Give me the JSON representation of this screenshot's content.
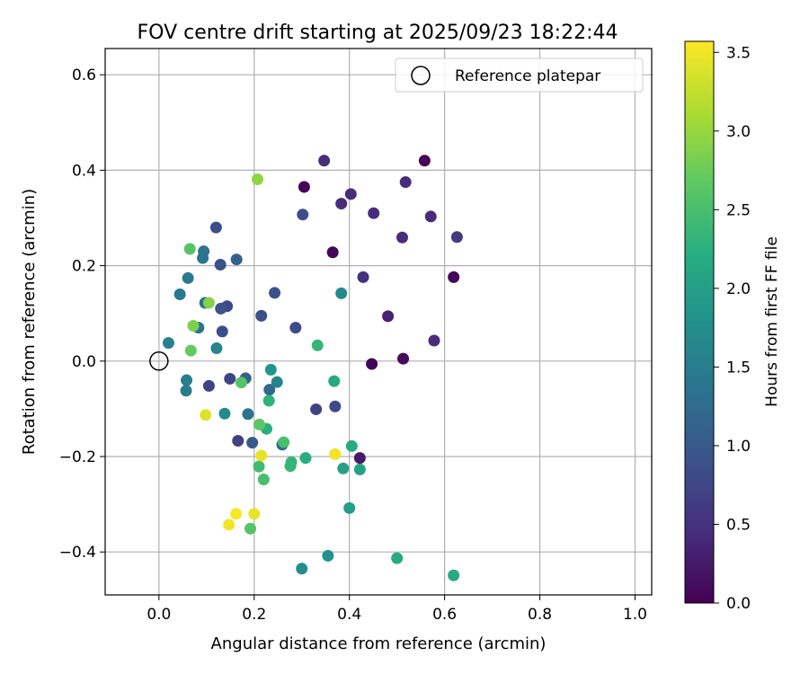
{
  "chart_data": {
    "type": "scatter",
    "title": "FOV centre drift starting at 2025/09/23 18:22:44",
    "xlabel": "Angular distance from reference (arcmin)",
    "ylabel": "Rotation from reference (arcmin)",
    "xlim": [
      -0.113,
      1.035
    ],
    "ylim": [
      -0.49,
      0.655
    ],
    "xticks": [
      0.0,
      0.2,
      0.4,
      0.6,
      0.8,
      1.0
    ],
    "xtick_labels": [
      "0.0",
      "0.2",
      "0.4",
      "0.6",
      "0.8",
      "1.0"
    ],
    "yticks": [
      -0.4,
      -0.2,
      0.0,
      0.2,
      0.4,
      0.6
    ],
    "ytick_labels": [
      "−0.4",
      "−0.2",
      "0.0",
      "0.2",
      "0.4",
      "0.6"
    ],
    "grid": true,
    "legend": {
      "position": "top-right",
      "entries": [
        "Reference platepar"
      ]
    },
    "reference_point": {
      "x": 0.0,
      "y": 0.0
    },
    "colorbar": {
      "label": "Hours from first FF file",
      "colormap": "viridis",
      "range": [
        0.0,
        3.57
      ],
      "ticks": [
        0.0,
        0.5,
        1.0,
        1.5,
        2.0,
        2.5,
        3.0,
        3.5
      ],
      "tick_labels": [
        "0.0",
        "0.5",
        "1.0",
        "1.5",
        "2.0",
        "2.5",
        "3.0",
        "3.5"
      ]
    },
    "points": [
      {
        "x": 0.558,
        "y": 0.42,
        "hours": 0.05
      },
      {
        "x": 0.305,
        "y": 0.365,
        "hours": 0.05
      },
      {
        "x": 0.365,
        "y": 0.228,
        "hours": 0.05
      },
      {
        "x": 0.619,
        "y": 0.176,
        "hours": 0.05
      },
      {
        "x": 0.447,
        "y": -0.006,
        "hours": 0.05
      },
      {
        "x": 0.513,
        "y": 0.005,
        "hours": 0.1
      },
      {
        "x": 0.347,
        "y": 0.42,
        "hours": 0.45
      },
      {
        "x": 0.518,
        "y": 0.375,
        "hours": 0.45
      },
      {
        "x": 0.403,
        "y": 0.35,
        "hours": 0.45
      },
      {
        "x": 0.383,
        "y": 0.33,
        "hours": 0.45
      },
      {
        "x": 0.451,
        "y": 0.31,
        "hours": 0.45
      },
      {
        "x": 0.571,
        "y": 0.303,
        "hours": 0.45
      },
      {
        "x": 0.511,
        "y": 0.259,
        "hours": 0.45
      },
      {
        "x": 0.626,
        "y": 0.26,
        "hours": 0.6
      },
      {
        "x": 0.429,
        "y": 0.176,
        "hours": 0.5
      },
      {
        "x": 0.481,
        "y": 0.094,
        "hours": 0.35
      },
      {
        "x": 0.578,
        "y": 0.043,
        "hours": 0.45
      },
      {
        "x": 0.422,
        "y": -0.203,
        "hours": 0.25
      },
      {
        "x": 0.302,
        "y": 0.307,
        "hours": 0.85
      },
      {
        "x": 0.12,
        "y": 0.28,
        "hours": 0.85
      },
      {
        "x": 0.129,
        "y": 0.202,
        "hours": 0.9
      },
      {
        "x": 0.163,
        "y": 0.213,
        "hours": 1.1
      },
      {
        "x": 0.243,
        "y": 0.143,
        "hours": 0.9
      },
      {
        "x": 0.143,
        "y": 0.115,
        "hours": 0.8
      },
      {
        "x": 0.13,
        "y": 0.11,
        "hours": 0.9
      },
      {
        "x": 0.215,
        "y": 0.095,
        "hours": 0.85
      },
      {
        "x": 0.287,
        "y": 0.07,
        "hours": 0.8
      },
      {
        "x": 0.133,
        "y": 0.062,
        "hours": 0.85
      },
      {
        "x": 0.105,
        "y": -0.052,
        "hours": 0.7
      },
      {
        "x": 0.149,
        "y": -0.037,
        "hours": 0.75
      },
      {
        "x": 0.182,
        "y": -0.036,
        "hours": 1.1
      },
      {
        "x": 0.232,
        "y": -0.06,
        "hours": 1.2
      },
      {
        "x": 0.33,
        "y": -0.101,
        "hours": 0.7
      },
      {
        "x": 0.37,
        "y": -0.095,
        "hours": 0.8
      },
      {
        "x": 0.166,
        "y": -0.167,
        "hours": 0.7
      },
      {
        "x": 0.196,
        "y": -0.171,
        "hours": 1.0
      },
      {
        "x": 0.259,
        "y": -0.175,
        "hours": 1.15
      },
      {
        "x": 0.094,
        "y": 0.23,
        "hours": 1.35
      },
      {
        "x": 0.092,
        "y": 0.216,
        "hours": 1.35
      },
      {
        "x": 0.061,
        "y": 0.174,
        "hours": 1.45
      },
      {
        "x": 0.044,
        "y": 0.14,
        "hours": 1.45
      },
      {
        "x": 0.097,
        "y": 0.122,
        "hours": 1.3
      },
      {
        "x": 0.083,
        "y": 0.07,
        "hours": 1.35
      },
      {
        "x": 0.02,
        "y": 0.038,
        "hours": 1.55
      },
      {
        "x": 0.121,
        "y": 0.027,
        "hours": 1.6
      },
      {
        "x": 0.058,
        "y": -0.04,
        "hours": 1.5
      },
      {
        "x": 0.057,
        "y": -0.062,
        "hours": 1.5
      },
      {
        "x": 0.138,
        "y": -0.11,
        "hours": 1.7
      },
      {
        "x": 0.187,
        "y": -0.111,
        "hours": 1.35
      },
      {
        "x": 0.383,
        "y": 0.142,
        "hours": 1.7
      },
      {
        "x": 0.248,
        "y": -0.044,
        "hours": 1.6
      },
      {
        "x": 0.235,
        "y": -0.018,
        "hours": 1.85
      },
      {
        "x": 0.3,
        "y": -0.435,
        "hours": 1.75
      },
      {
        "x": 0.355,
        "y": -0.408,
        "hours": 1.8
      },
      {
        "x": 0.5,
        "y": -0.413,
        "hours": 2.15
      },
      {
        "x": 0.619,
        "y": -0.449,
        "hours": 2.15
      },
      {
        "x": 0.4,
        "y": -0.308,
        "hours": 2.0
      },
      {
        "x": 0.387,
        "y": -0.225,
        "hours": 2.05
      },
      {
        "x": 0.422,
        "y": -0.227,
        "hours": 2.05
      },
      {
        "x": 0.405,
        "y": -0.178,
        "hours": 2.15
      },
      {
        "x": 0.368,
        "y": -0.042,
        "hours": 2.15
      },
      {
        "x": 0.333,
        "y": 0.033,
        "hours": 2.35
      },
      {
        "x": 0.231,
        "y": -0.083,
        "hours": 2.3
      },
      {
        "x": 0.226,
        "y": -0.142,
        "hours": 2.25
      },
      {
        "x": 0.278,
        "y": -0.212,
        "hours": 2.35
      },
      {
        "x": 0.276,
        "y": -0.22,
        "hours": 2.35
      },
      {
        "x": 0.308,
        "y": -0.203,
        "hours": 2.2
      },
      {
        "x": 0.262,
        "y": -0.17,
        "hours": 2.5
      },
      {
        "x": 0.21,
        "y": -0.221,
        "hours": 2.45
      },
      {
        "x": 0.22,
        "y": -0.248,
        "hours": 2.5
      },
      {
        "x": 0.211,
        "y": -0.133,
        "hours": 2.65
      },
      {
        "x": 0.192,
        "y": -0.351,
        "hours": 2.6
      },
      {
        "x": 0.173,
        "y": -0.045,
        "hours": 2.6
      },
      {
        "x": 0.065,
        "y": 0.235,
        "hours": 2.6
      },
      {
        "x": 0.067,
        "y": 0.022,
        "hours": 2.7
      },
      {
        "x": 0.072,
        "y": 0.074,
        "hours": 2.85
      },
      {
        "x": 0.105,
        "y": 0.122,
        "hours": 2.9
      },
      {
        "x": 0.207,
        "y": 0.381,
        "hours": 2.95
      },
      {
        "x": 0.098,
        "y": -0.113,
        "hours": 3.4
      },
      {
        "x": 0.215,
        "y": -0.198,
        "hours": 3.45
      },
      {
        "x": 0.37,
        "y": -0.195,
        "hours": 3.5
      },
      {
        "x": 0.162,
        "y": -0.32,
        "hours": 3.55
      },
      {
        "x": 0.147,
        "y": -0.343,
        "hours": 3.5
      },
      {
        "x": 0.2,
        "y": -0.32,
        "hours": 3.45
      }
    ]
  }
}
